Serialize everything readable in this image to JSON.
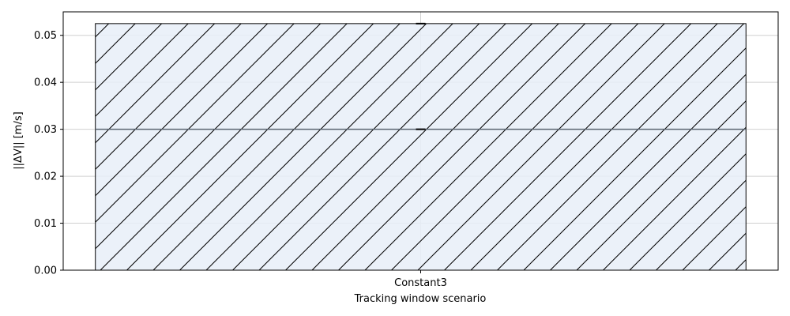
{
  "chart_data": {
    "type": "bar",
    "categories": [
      "Constant3"
    ],
    "series": [
      {
        "values": [
          0.0525
        ],
        "stacked_segment_at": 0.03,
        "error_bar": [
          0.0525,
          0.0525
        ]
      }
    ],
    "xlabel": "Tracking window scenario",
    "ylabel": "||ΔV|| [m/s]",
    "ylim": [
      0,
      0.055
    ],
    "yticks": [
      "0.00",
      "0.01",
      "0.02",
      "0.03",
      "0.04",
      "0.05"
    ],
    "ytick_values": [
      0.0,
      0.01,
      0.02,
      0.03,
      0.04,
      0.05
    ],
    "grid": true,
    "hatch": "diagonal",
    "colors": {
      "bar_fill": "#e8eff8",
      "bar_edge": "#000000",
      "hatch": "#000000",
      "grid": "#d0d0d0",
      "segment_line": "#5a6470"
    }
  }
}
